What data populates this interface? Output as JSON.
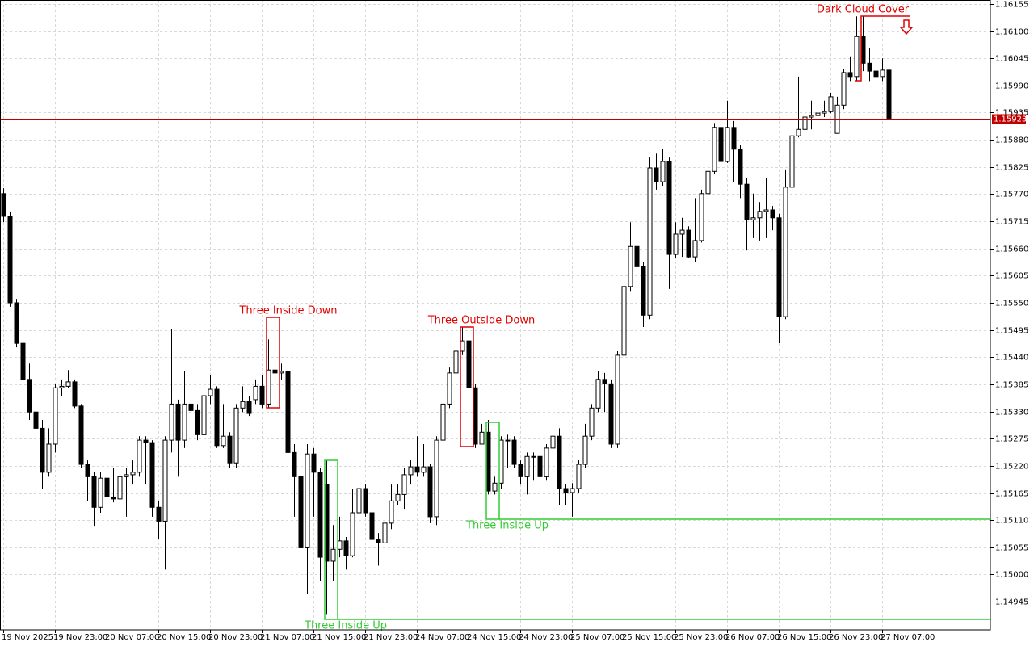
{
  "chart_data": {
    "type": "candlestick",
    "categories": [
      "19 Nov 2025",
      null,
      null,
      null,
      null,
      null,
      null,
      null,
      "19 Nov 23:00",
      null,
      null,
      null,
      null,
      null,
      null,
      null,
      "20 Nov 07:00",
      null,
      null,
      null,
      null,
      null,
      null,
      null,
      "20 Nov 15:00",
      null,
      null,
      null,
      null,
      null,
      null,
      null,
      "20 Nov 23:00",
      null,
      null,
      null,
      null,
      null,
      null,
      null,
      "21 Nov 07:00",
      null,
      null,
      null,
      null,
      null,
      null,
      null,
      "21 Nov 15:00",
      null,
      null,
      null,
      null,
      null,
      null,
      null,
      "21 Nov 23:00",
      null,
      null,
      null,
      null,
      null,
      null,
      null,
      "24 Nov 07:00",
      null,
      null,
      null,
      null,
      null,
      null,
      null,
      "24 Nov 15:00",
      null,
      null,
      null,
      null,
      null,
      null,
      null,
      "24 Nov 23:00",
      null,
      null,
      null,
      null,
      null,
      null,
      null,
      "25 Nov 07:00",
      null,
      null,
      null,
      null,
      null,
      null,
      null,
      "25 Nov 15:00",
      null,
      null,
      null,
      null,
      null,
      null,
      null,
      "25 Nov 23:00",
      null,
      null,
      null,
      null,
      null,
      null,
      null,
      "26 Nov 07:00",
      null,
      null,
      null,
      null,
      null,
      null,
      null,
      "26 Nov 15:00",
      null,
      null,
      null,
      null,
      null,
      null,
      null,
      "26 Nov 23:00",
      null,
      null,
      null,
      null,
      null,
      null,
      null,
      "27 Nov 07:00",
      null
    ],
    "open": [
      1.15771,
      1.15725,
      1.1555,
      1.15468,
      1.15395,
      1.15329,
      1.15296,
      1.15207,
      1.15264,
      1.15378,
      1.15381,
      1.1539,
      1.15341,
      1.15223,
      1.15198,
      1.15136,
      1.15195,
      1.15157,
      1.15153,
      1.15198,
      1.15202,
      1.15207,
      1.15272,
      1.15267,
      1.15136,
      1.15108,
      1.15272,
      1.15345,
      1.15272,
      1.15345,
      1.15332,
      1.15283,
      1.15362,
      1.15375,
      1.15261,
      1.1528,
      1.15226,
      1.15337,
      1.1535,
      1.15354,
      1.15381,
      1.15345,
      1.15414,
      1.15408,
      1.15411,
      1.15247,
      1.15198,
      1.15054,
      1.15244,
      1.15207,
      1.15182,
      1.15027,
      1.15051,
      1.15068,
      1.15038,
      1.15125,
      1.15174,
      1.15125,
      1.15071,
      1.15064,
      1.15104,
      1.15149,
      1.15162,
      1.15202,
      1.15218,
      1.15207,
      1.15218,
      1.15117,
      1.15272,
      1.15345,
      1.15408,
      1.15452,
      1.15473,
      1.15378,
      1.15264,
      1.15288,
      1.15169,
      1.15185,
      1.15272,
      1.15272,
      1.15223,
      1.15198,
      1.15239,
      1.15239,
      1.15198,
      1.15256,
      1.1528,
      1.15174,
      1.15166,
      1.15174,
      1.15223,
      1.1528,
      1.15337,
      1.15395,
      1.15386,
      1.15264,
      1.15444,
      1.15583,
      1.15664,
      1.15623,
      1.15525,
      1.15823,
      1.15795,
      1.15836,
      1.15648,
      1.15689,
      1.15697,
      1.15643,
      1.15676,
      1.15771,
      1.15816,
      1.15905,
      1.15836,
      1.15905,
      1.15861,
      1.1579,
      1.15718,
      1.15722,
      1.15735,
      1.15738,
      1.15722,
      1.15522,
      1.15784,
      1.15888,
      1.15901,
      1.15926,
      1.15929,
      1.15934,
      1.15937,
      1.15893,
      1.1595,
      1.16016,
      1.16008,
      1.16089,
      1.16035,
      1.16019,
      1.16008,
      1.16021
    ],
    "high": [
      1.15782,
      1.15735,
      1.15558,
      1.15476,
      1.15427,
      1.15378,
      1.15313,
      1.15296,
      1.15386,
      1.15395,
      1.15414,
      1.15395,
      1.15345,
      1.15231,
      1.15207,
      1.15207,
      1.15202,
      1.15215,
      1.15223,
      1.15215,
      1.15231,
      1.1528,
      1.1528,
      1.15272,
      1.15149,
      1.1528,
      1.15496,
      1.15354,
      1.15411,
      1.15378,
      1.15345,
      1.15386,
      1.15403,
      1.15381,
      1.15345,
      1.15288,
      1.15345,
      1.15381,
      1.15362,
      1.15395,
      1.15403,
      1.15476,
      1.1548,
      1.15427,
      1.15419,
      1.15264,
      1.15207,
      1.15264,
      1.15256,
      1.15215,
      1.15231,
      1.151,
      1.15117,
      1.15076,
      1.15174,
      1.15182,
      1.15182,
      1.15133,
      1.15084,
      1.15117,
      1.15182,
      1.15182,
      1.15215,
      1.15231,
      1.1528,
      1.15264,
      1.15223,
      1.1528,
      1.15362,
      1.15419,
      1.15476,
      1.15501,
      1.15484,
      1.15386,
      1.15305,
      1.15313,
      1.15198,
      1.1528,
      1.15283,
      1.1528,
      1.15231,
      1.15247,
      1.15247,
      1.15247,
      1.15264,
      1.15296,
      1.15296,
      1.15182,
      1.15185,
      1.15231,
      1.15305,
      1.15345,
      1.15411,
      1.15408,
      1.15395,
      1.15452,
      1.15599,
      1.15713,
      1.15705,
      1.15632,
      1.15844,
      1.15852,
      1.15861,
      1.15844,
      1.15713,
      1.15722,
      1.15705,
      1.15762,
      1.15779,
      1.15836,
      1.15914,
      1.1591,
      1.15959,
      1.15918,
      1.15869,
      1.15803,
      1.15771,
      1.15754,
      1.15803,
      1.15746,
      1.1573,
      1.1582,
      1.15942,
      1.16008,
      1.15934,
      1.15959,
      1.15942,
      1.15959,
      1.15975,
      1.15967,
      1.16024,
      1.16049,
      1.1613,
      1.1613,
      1.16065,
      1.16032,
      1.16045,
      1.16024
    ],
    "low": [
      1.15713,
      1.15542,
      1.1546,
      1.15386,
      1.15313,
      1.1528,
      1.15174,
      1.15198,
      1.15247,
      1.15362,
      1.15378,
      1.15337,
      1.15215,
      1.15149,
      1.15097,
      1.15125,
      1.15133,
      1.15146,
      1.15141,
      1.15117,
      1.15182,
      1.15198,
      1.15182,
      1.15117,
      1.15071,
      1.1501,
      1.15247,
      1.15198,
      1.15256,
      1.1528,
      1.15272,
      1.15272,
      1.15345,
      1.15256,
      1.15256,
      1.15215,
      1.15215,
      1.15329,
      1.15321,
      1.15345,
      1.15337,
      1.15337,
      1.15378,
      1.15395,
      1.15239,
      1.15117,
      1.15035,
      1.14961,
      1.15117,
      1.14986,
      1.1492,
      1.14986,
      1.15035,
      1.1501,
      1.15035,
      1.15117,
      1.15117,
      1.15059,
      1.15018,
      1.15051,
      1.15092,
      1.15141,
      1.15133,
      1.15182,
      1.15198,
      1.15198,
      1.15104,
      1.151,
      1.15264,
      1.15337,
      1.15362,
      1.15444,
      1.15362,
      1.15256,
      1.15264,
      1.15162,
      1.15162,
      1.15174,
      1.15215,
      1.15215,
      1.15182,
      1.15162,
      1.1519,
      1.1519,
      1.1519,
      1.15247,
      1.15141,
      1.15141,
      1.15117,
      1.15166,
      1.15215,
      1.15272,
      1.15329,
      1.15329,
      1.15256,
      1.15256,
      1.15435,
      1.15574,
      1.15574,
      1.15501,
      1.15517,
      1.15779,
      1.15787,
      1.15578,
      1.1564,
      1.15643,
      1.1564,
      1.15632,
      1.15672,
      1.15762,
      1.15811,
      1.15828,
      1.15833,
      1.15795,
      1.15762,
      1.15656,
      1.15681,
      1.15676,
      1.15681,
      1.15697,
      1.15468,
      1.15517,
      1.15779,
      1.15885,
      1.15893,
      1.15901,
      1.15901,
      1.15926,
      1.15934,
      1.15893,
      1.15942,
      1.15999,
      1.15999,
      1.16019,
      1.15999,
      1.15996,
      1.15999,
      1.1591
    ],
    "close": [
      1.15725,
      1.1555,
      1.15468,
      1.15395,
      1.15329,
      1.15296,
      1.15207,
      1.15264,
      1.15378,
      1.15381,
      1.1539,
      1.15341,
      1.15223,
      1.15198,
      1.15136,
      1.15195,
      1.15157,
      1.15153,
      1.15198,
      1.15202,
      1.15207,
      1.15272,
      1.15267,
      1.15136,
      1.15108,
      1.15272,
      1.15345,
      1.15272,
      1.15345,
      1.15332,
      1.15283,
      1.15362,
      1.15375,
      1.15261,
      1.1528,
      1.15226,
      1.15337,
      1.1535,
      1.15326,
      1.15381,
      1.15345,
      1.15414,
      1.15408,
      1.15411,
      1.15247,
      1.15198,
      1.15054,
      1.15244,
      1.15207,
      1.15035,
      1.15027,
      1.15051,
      1.15068,
      1.15038,
      1.15125,
      1.15174,
      1.15125,
      1.15071,
      1.15064,
      1.15104,
      1.15149,
      1.15162,
      1.15202,
      1.15218,
      1.15207,
      1.15218,
      1.15117,
      1.15272,
      1.15345,
      1.15408,
      1.15452,
      1.15473,
      1.15378,
      1.15264,
      1.15288,
      1.15169,
      1.15185,
      1.15272,
      1.15272,
      1.15223,
      1.15198,
      1.15239,
      1.15239,
      1.15198,
      1.15256,
      1.1528,
      1.15174,
      1.15166,
      1.15174,
      1.15223,
      1.1528,
      1.15337,
      1.15395,
      1.15386,
      1.15264,
      1.15444,
      1.15583,
      1.15664,
      1.15623,
      1.15525,
      1.15823,
      1.15795,
      1.15836,
      1.15648,
      1.15689,
      1.15697,
      1.15643,
      1.15676,
      1.15771,
      1.15816,
      1.15905,
      1.15836,
      1.15905,
      1.15861,
      1.1579,
      1.15718,
      1.15722,
      1.15735,
      1.15738,
      1.15722,
      1.15522,
      1.15784,
      1.15888,
      1.15901,
      1.15926,
      1.15929,
      1.15934,
      1.15937,
      1.15967,
      1.1595,
      1.16016,
      1.16008,
      1.16089,
      1.16035,
      1.16019,
      1.16008,
      1.16021,
      1.15923
    ],
    "up_color": "#ffffff",
    "down_color": "#000000",
    "ylim": [
      1.14888,
      1.16163
    ],
    "yticks": [
      1.16155,
      {
        "value": 1.161,
        "label": "1.16100"
      },
      1.16045,
      {
        "value": 1.1599,
        "label": "1.15990"
      },
      1.15935,
      {
        "value": 1.1588,
        "label": "1.15880"
      },
      1.15825,
      {
        "value": 1.1577,
        "label": "1.15770"
      },
      1.15715,
      {
        "value": 1.1566,
        "label": "1.15660"
      },
      1.15605,
      {
        "value": 1.1555,
        "label": "1.15550"
      },
      1.15495,
      {
        "value": 1.1544,
        "label": "1.15440"
      },
      1.15385,
      {
        "value": 1.1533,
        "label": "1.15330"
      },
      1.15275,
      {
        "value": 1.1522,
        "label": "1.15220"
      },
      1.15165,
      {
        "value": 1.1511,
        "label": "1.15110"
      },
      1.15055,
      {
        "value": 1.15,
        "label": "1.15000"
      },
      1.14945
    ],
    "grid": true,
    "last_price": 1.15923,
    "last_price_color": "#c00000",
    "annotations": [
      "Three Inside Down",
      "Three Outside Down",
      "Three Inside Up",
      "Three Inside Up",
      "Dark Cloud Cover"
    ]
  }
}
